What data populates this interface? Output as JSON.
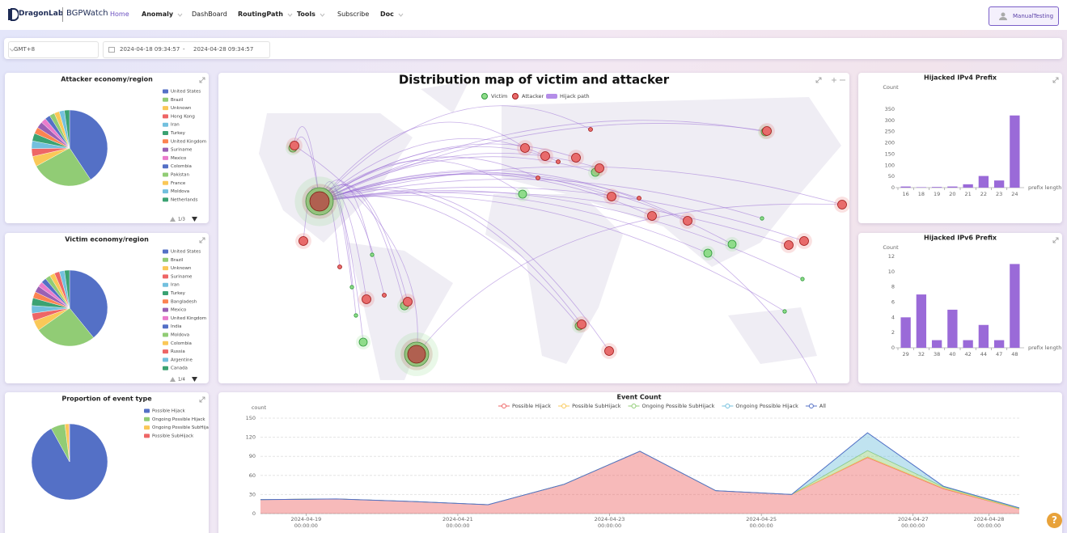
{
  "nav": {
    "logo": "DragonLab",
    "brand": "BGPWatch",
    "items": [
      "Home",
      "Anomaly",
      "DashBoard",
      "RoutingPath",
      "Tools",
      "Subscribe",
      "Doc"
    ],
    "user": "ManualTesting"
  },
  "filters": {
    "timezone": "GMT+8",
    "start": "2024-04-18 09:34:57",
    "separator": "-",
    "end": "2024-04-28 09:34:57"
  },
  "help": "?",
  "chart_data": [
    {
      "type": "pie",
      "title": "Attacker economy/region",
      "categories": [
        "United States",
        "Brazil",
        "Unknown",
        "Hong Kong",
        "Iran",
        "Turkey",
        "United Kingdom",
        "Suriname",
        "Mexico",
        "Colombia",
        "Pakistan",
        "France",
        "Moldova",
        "Netherlands"
      ],
      "values": [
        37,
        24,
        4,
        3,
        3,
        3,
        2.5,
        2.5,
        2,
        2,
        2,
        2,
        2,
        2
      ],
      "colors": [
        "#5470c6",
        "#91cc75",
        "#fac858",
        "#ee6666",
        "#73c0de",
        "#3ba272",
        "#fc8452",
        "#9a60b4",
        "#ea7ccc",
        "#5470c6",
        "#91cc75",
        "#fac858",
        "#73c0de",
        "#3ba272"
      ],
      "legend_page": "1/3"
    },
    {
      "type": "pie",
      "title": "Victim economy/region",
      "categories": [
        "United States",
        "Brazil",
        "Unknown",
        "Suriname",
        "Iran",
        "Turkey",
        "Bangladesh",
        "Mexico",
        "United Kingdom",
        "India",
        "Moldova",
        "Colombia",
        "Russia",
        "Argentine",
        "Canada"
      ],
      "values": [
        36,
        24,
        4,
        3,
        3,
        3,
        2.5,
        2.5,
        2,
        2,
        2,
        2,
        2,
        2,
        2
      ],
      "colors": [
        "#5470c6",
        "#91cc75",
        "#fac858",
        "#ee6666",
        "#73c0de",
        "#3ba272",
        "#fc8452",
        "#9a60b4",
        "#ea7ccc",
        "#5470c6",
        "#91cc75",
        "#fac858",
        "#ee6666",
        "#73c0de",
        "#3ba272"
      ],
      "legend_page": "1/4"
    },
    {
      "type": "pie",
      "title": "Proportion of event type",
      "categories": [
        "Possible Hijack",
        "Ongoing Possible Hijack",
        "Ongoing Possible SubHijack",
        "Possible SubHijack"
      ],
      "values": [
        92,
        6,
        1.7,
        0.3
      ],
      "colors": [
        "#5470c6",
        "#91cc75",
        "#fac858",
        "#ee6666"
      ]
    },
    {
      "type": "map",
      "title": "Distribution map of victim and attacker",
      "legend": [
        "Victim",
        "Attacker",
        "Hijack path"
      ]
    },
    {
      "type": "bar",
      "title": "Hijacked IPv4 Prefix",
      "y_label": "Count",
      "x_label": "prefix length",
      "categories": [
        16,
        18,
        19,
        20,
        21,
        22,
        23,
        24
      ],
      "values": [
        5,
        2,
        3,
        5,
        15,
        52,
        32,
        322
      ],
      "color": "#9a6ad8",
      "ylim": [
        0,
        350
      ],
      "yticks": [
        0,
        50,
        100,
        150,
        200,
        250,
        300,
        350
      ],
      "grid": false
    },
    {
      "type": "bar",
      "title": "Hijacked IPv6 Prefix",
      "y_label": "Count",
      "x_label": "prefix length",
      "categories": [
        29,
        32,
        38,
        40,
        42,
        44,
        47,
        48
      ],
      "values": [
        4,
        7,
        1,
        5,
        1,
        3,
        1,
        11
      ],
      "color": "#9a6ad8",
      "ylim": [
        0,
        12
      ],
      "yticks": [
        0,
        2,
        4,
        6,
        8,
        10,
        12
      ],
      "grid": false
    },
    {
      "type": "area",
      "title": "Event Count",
      "y_label": "count",
      "x": [
        "2024-04-18 09:34:57",
        "2024-04-19 09:34:57",
        "2024-04-20 09:34:57",
        "2024-04-21 09:34:57",
        "2024-04-22 09:34:57",
        "2024-04-23 09:34:57",
        "2024-04-24 09:34:57",
        "2024-04-25 09:34:57",
        "2024-04-26 09:34:57",
        "2024-04-27 09:34:57",
        "2024-04-28 09:34:57"
      ],
      "xlim": [
        "2024-04-18 09:34:57",
        "2024-04-28 09:34:57"
      ],
      "xticks": [
        "2024-04-19 00:00:00",
        "2024-04-21 00:00:00",
        "2024-04-23 00:00:00",
        "2024-04-25 00:00:00",
        "2024-04-27 00:00:00",
        "2024-04-28 00:00:00"
      ],
      "ylim": [
        0,
        150
      ],
      "yticks": [
        0,
        30,
        60,
        90,
        120,
        150
      ],
      "grid": true,
      "series": [
        {
          "name": "Possible Hijack",
          "color": "#ee6666",
          "stacked": true,
          "values": [
            22,
            23,
            19,
            14,
            46,
            98,
            36,
            30,
            88,
            39,
            7
          ]
        },
        {
          "name": "Possible SubHijack",
          "color": "#fac858",
          "stacked": true,
          "values": [
            0,
            0,
            0,
            0,
            0,
            0,
            0,
            0,
            1,
            1,
            0
          ]
        },
        {
          "name": "Ongoing Possible SubHijack",
          "color": "#91cc75",
          "stacked": true,
          "values": [
            0,
            0,
            0,
            0,
            0,
            0,
            0,
            0,
            10,
            2,
            1
          ]
        },
        {
          "name": "Ongoing Possible Hijack",
          "color": "#73c0de",
          "stacked": true,
          "values": [
            0,
            0,
            0,
            0,
            0,
            0,
            0,
            0,
            28,
            1,
            1
          ]
        },
        {
          "name": "All",
          "color": "#5470c6",
          "stacked": false,
          "values": [
            22,
            23,
            19,
            14,
            46,
            98,
            36,
            30,
            127,
            43,
            9
          ]
        }
      ]
    }
  ]
}
